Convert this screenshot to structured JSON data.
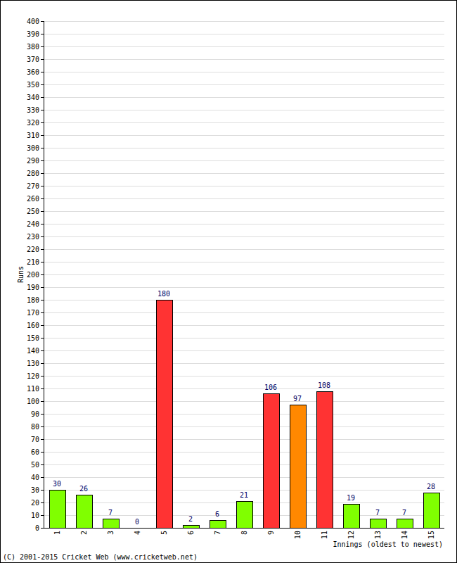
{
  "chart_data": {
    "type": "bar",
    "x_label": "Innings (oldest to newest)",
    "y_label": "Runs",
    "annotations": [
      "(C) 2001-2015 Cricket Web (www.cricketweb.net)"
    ],
    "categories": [
      "1",
      "2",
      "3",
      "4",
      "5",
      "6",
      "7",
      "8",
      "9",
      "10",
      "11",
      "12",
      "13",
      "14",
      "15"
    ],
    "values": [
      30,
      26,
      7,
      0,
      180,
      2,
      6,
      21,
      106,
      97,
      108,
      19,
      7,
      7,
      28
    ],
    "colors": [
      "#80ff00",
      "#80ff00",
      "#80ff00",
      "#80ff00",
      "#ff3333",
      "#80ff00",
      "#80ff00",
      "#80ff00",
      "#ff3333",
      "#ff8800",
      "#ff3333",
      "#80ff00",
      "#80ff00",
      "#80ff00",
      "#80ff00"
    ],
    "ylim": [
      0,
      400
    ],
    "yticks": [
      0,
      10,
      20,
      30,
      40,
      50,
      60,
      70,
      80,
      90,
      100,
      110,
      120,
      130,
      140,
      150,
      160,
      170,
      180,
      190,
      200,
      210,
      220,
      230,
      240,
      250,
      260,
      270,
      280,
      290,
      300,
      310,
      320,
      330,
      340,
      350,
      360,
      370,
      380,
      390,
      400
    ],
    "grid": true,
    "data_labels": true
  }
}
